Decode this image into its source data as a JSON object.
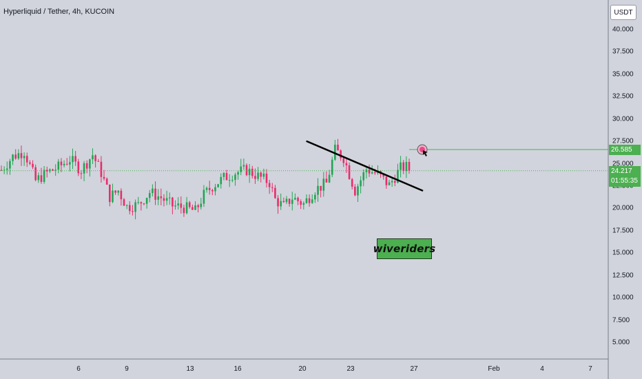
{
  "header": {
    "symbol_parts": [
      "Hyperliquid / Tether,",
      "4h,",
      "KUCOIN"
    ]
  },
  "toolbar": {
    "unit_label": "USDT"
  },
  "price_labels": {
    "target": "26.585",
    "last_price": "24.217",
    "countdown": "01:55:35"
  },
  "watermark": {
    "text": "wiveriders"
  },
  "colors": {
    "background": "#d1d4dc",
    "up": "#22a455",
    "down": "#ea2b6b",
    "target_line": "#4caf50",
    "trendline": "#000000",
    "marker": "#e64a8a"
  },
  "chart_data": {
    "type": "candlestick",
    "title": "Hyperliquid / Tether, 4h, KUCOIN",
    "ylim": [
      3.0,
      42.0
    ],
    "yticks": [
      "40.000",
      "37.500",
      "35.000",
      "32.500",
      "30.000",
      "27.500",
      "25.000",
      "22.500",
      "20.000",
      "17.500",
      "15.000",
      "12.500",
      "10.000",
      "7.500",
      "5.000"
    ],
    "ytick_values": [
      40,
      37.5,
      35,
      32.5,
      30,
      27.5,
      25,
      22.5,
      20,
      17.5,
      15,
      12.5,
      10,
      7.5,
      5
    ],
    "xticks": [
      "6",
      "9",
      "13",
      "16",
      "20",
      "23",
      "27",
      "Feb",
      "4",
      "7"
    ],
    "x_start": "2025-01-02",
    "grid": false,
    "last_price": 24.217,
    "target_level": 26.585,
    "trendline": {
      "from": [
        "2025-01-22",
        27.5
      ],
      "to": [
        "2025-01-28",
        22.0
      ]
    },
    "close_path": [
      [
        0,
        24.3
      ],
      [
        4,
        25.8
      ],
      [
        8,
        26.4
      ],
      [
        12,
        23.1
      ],
      [
        16,
        24.0
      ],
      [
        20,
        24.6
      ],
      [
        24,
        25.5
      ],
      [
        28,
        24.3
      ],
      [
        32,
        26.0
      ],
      [
        35,
        24.0
      ],
      [
        38,
        21.3
      ],
      [
        41,
        22.0
      ],
      [
        44,
        20.2
      ],
      [
        48,
        20.4
      ],
      [
        52,
        21.8
      ],
      [
        56,
        21.2
      ],
      [
        60,
        20.3
      ],
      [
        64,
        20.1
      ],
      [
        68,
        19.7
      ],
      [
        71,
        21.5
      ],
      [
        74,
        22.5
      ],
      [
        78,
        23.4
      ],
      [
        82,
        24.0
      ],
      [
        86,
        24.3
      ],
      [
        90,
        23.6
      ],
      [
        94,
        22.9
      ],
      [
        96,
        21.0
      ],
      [
        99,
        20.2
      ],
      [
        102,
        21.2
      ],
      [
        106,
        20.5
      ],
      [
        110,
        22.1
      ],
      [
        114,
        22.8
      ],
      [
        117,
        26.5
      ],
      [
        120,
        25.7
      ],
      [
        124,
        22.0
      ],
      [
        128,
        24.4
      ],
      [
        132,
        23.8
      ],
      [
        136,
        22.6
      ],
      [
        140,
        24.5
      ],
      [
        143,
        24.7
      ]
    ]
  }
}
